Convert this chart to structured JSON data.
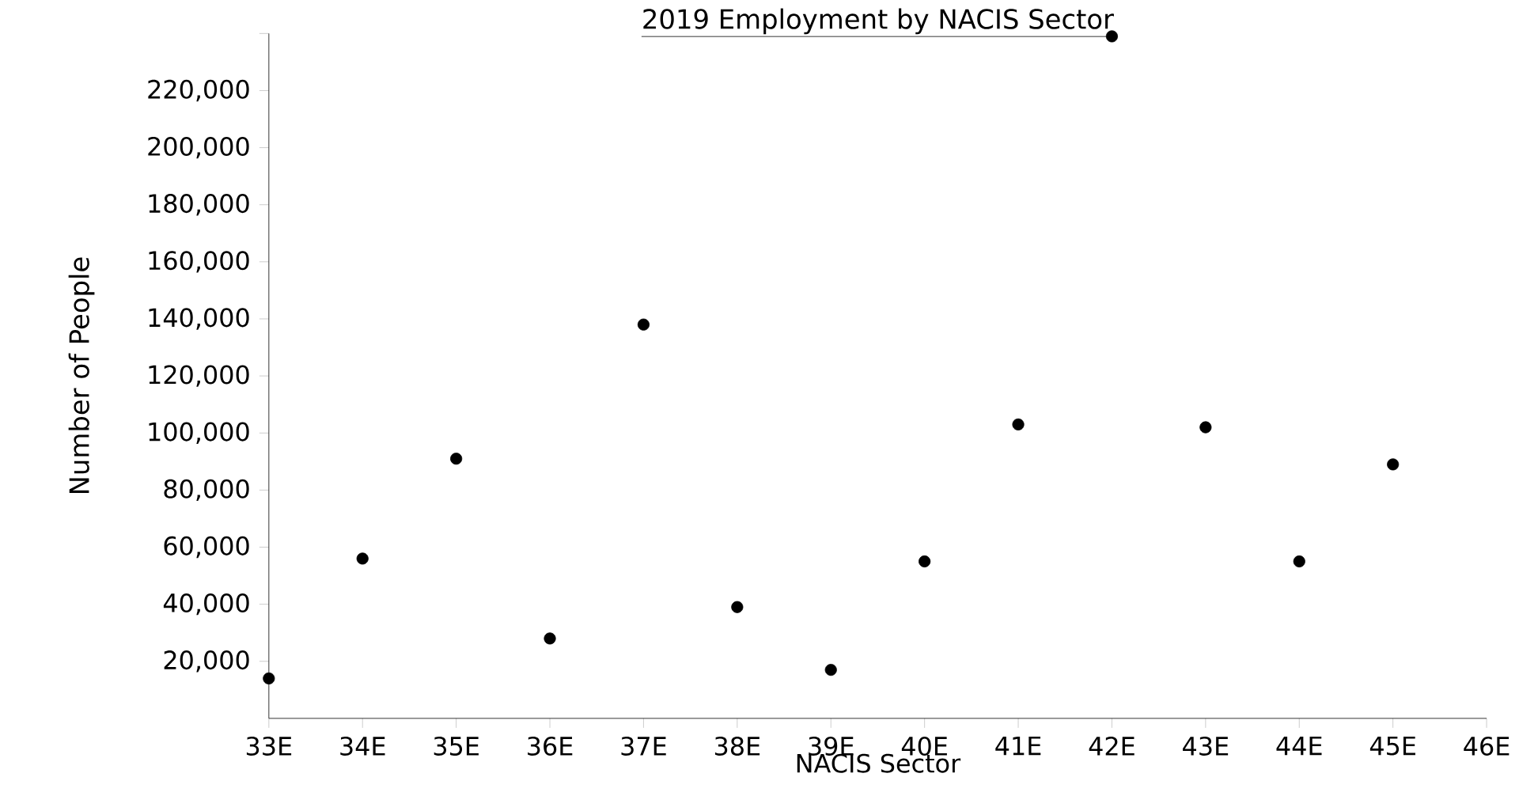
{
  "chart_data": {
    "type": "scatter",
    "title": "2019 Employment by NACIS Sector",
    "xlabel": "NACIS Sector",
    "ylabel": "Number of People",
    "categories": [
      "33E",
      "34E",
      "35E",
      "36E",
      "37E",
      "38E",
      "39E",
      "40E",
      "41E",
      "42E",
      "43E",
      "44E",
      "45E",
      "46E"
    ],
    "values": [
      14000,
      56000,
      91000,
      28000,
      138000,
      39000,
      17000,
      55000,
      103000,
      239000,
      102000,
      55000,
      89000,
      null
    ],
    "color": "#000000",
    "ylim": [
      0,
      240000
    ],
    "yticks": [
      {
        "value": 20000,
        "label": "20,000"
      },
      {
        "value": 40000,
        "label": "40,000"
      },
      {
        "value": 60000,
        "label": "60,000"
      },
      {
        "value": 80000,
        "label": "80,000"
      },
      {
        "value": 100000,
        "label": "100,000"
      },
      {
        "value": 120000,
        "label": "120,000"
      },
      {
        "value": 140000,
        "label": "140,000"
      },
      {
        "value": 160000,
        "label": "160,000"
      },
      {
        "value": 180000,
        "label": "180,000"
      },
      {
        "value": 200000,
        "label": "200,000"
      },
      {
        "value": 220000,
        "label": "220,000"
      },
      {
        "value": 240000,
        "label": null
      }
    ]
  }
}
